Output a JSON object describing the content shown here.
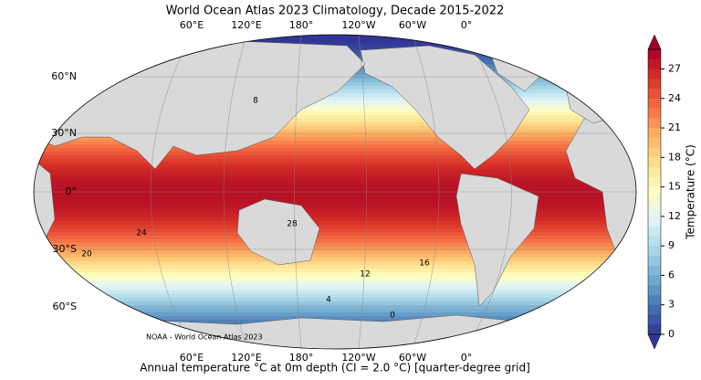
{
  "title": "World Ocean Atlas 2023 Climatology, Decade 2015-2022",
  "caption": "Annual temperature °C at 0m depth (CI = 2.0 °C) [quarter-degree grid]",
  "credit": "NOAA - World Ocean Atlas 2023",
  "longitude_labels": [
    "60°E",
    "120°E",
    "180°",
    "120°W",
    "60°W",
    "0°"
  ],
  "latitude_labels": [
    "60°N",
    "30°N",
    "0°",
    "30°S",
    "60°S"
  ],
  "colorbar": {
    "label": "Temperature (°C)",
    "range": [
      0,
      29
    ],
    "ticks": [
      0,
      3,
      6,
      9,
      12,
      15,
      18,
      21,
      24,
      27
    ],
    "colors": [
      "#313695",
      "#4575b4",
      "#74add1",
      "#abd9e9",
      "#e0f3f8",
      "#ffffbf",
      "#fee090",
      "#fdae61",
      "#f46d43",
      "#d73027",
      "#a50026"
    ]
  },
  "contour_labels": [
    "28",
    "24",
    "20",
    "16",
    "12",
    "8",
    "4",
    "0"
  ]
}
